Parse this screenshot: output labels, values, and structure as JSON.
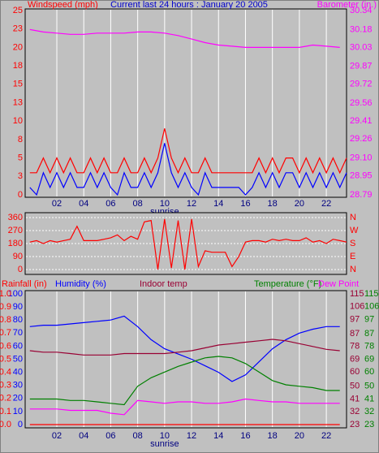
{
  "chart_data": [
    {
      "type": "line",
      "title": "Current last 24 hours : January 20 2005",
      "y_label": "Windspeed (mph)",
      "y2_label": "Barometer (in.)",
      "annotation": "sunrise",
      "grid": "x",
      "xlim": [
        -0.35,
        23.5
      ],
      "xticks": [
        {
          "value": 2,
          "label": "02"
        },
        {
          "value": 4,
          "label": "04"
        },
        {
          "value": 6,
          "label": "06"
        },
        {
          "value": 8,
          "label": "08"
        },
        10,
        12,
        14,
        16,
        18,
        20,
        22
      ],
      "ylim": [
        0,
        25
      ],
      "yticks": [
        0,
        {
          "value": 2.5,
          "label": "3"
        },
        5,
        {
          "value": 7.5,
          "label": "8"
        },
        10,
        {
          "value": 12.5,
          "label": "13"
        },
        15,
        {
          "value": 17.5,
          "label": "18"
        },
        20,
        {
          "value": 22.5,
          "label": "23"
        },
        25
      ],
      "y2lim": [
        28.79,
        30.34
      ],
      "y2ticks": [
        28.79,
        28.95,
        {
          "value": 29.1,
          "label": "29.10"
        },
        29.26,
        29.41,
        29.56,
        29.72,
        29.87,
        30.03,
        30.18,
        30.34
      ],
      "x": [
        0,
        0.5,
        1,
        1.5,
        2,
        2.5,
        3,
        3.5,
        4,
        4.5,
        5,
        5.5,
        6,
        6.5,
        7,
        7.5,
        8,
        8.5,
        9,
        9.5,
        10,
        10.5,
        11,
        11.5,
        12,
        12.5,
        13,
        13.5,
        14,
        14.5,
        15,
        15.5,
        16,
        16.5,
        17,
        17.5,
        18,
        18.5,
        19,
        19.5,
        20,
        20.5,
        21,
        21.5,
        22,
        22.5,
        23,
        23.5
      ],
      "series": [
        {
          "color": "#ff0000",
          "values": [
            3,
            3,
            5,
            3,
            5,
            3,
            5,
            3,
            3,
            5,
            3,
            5,
            3,
            3,
            5,
            3,
            3,
            5,
            3,
            5,
            9,
            5,
            3,
            5,
            3,
            3,
            5,
            3,
            3,
            3,
            3,
            3,
            3,
            3,
            5,
            3,
            5,
            3,
            5,
            5,
            3,
            5,
            3,
            5,
            3,
            5,
            3,
            5
          ]
        },
        {
          "color": "#0000ff",
          "values": [
            1,
            0,
            3,
            1,
            3,
            1,
            3,
            1,
            1,
            3,
            1,
            3,
            1,
            0,
            3,
            1,
            1,
            3,
            1,
            3,
            7,
            3,
            1,
            3,
            1,
            0,
            3,
            1,
            1,
            1,
            1,
            1,
            0,
            1,
            3,
            1,
            3,
            1,
            3,
            3,
            1,
            3,
            1,
            3,
            1,
            3,
            1,
            3
          ]
        },
        {
          "color": "#ff00ff",
          "axis": "y2",
          "x": [
            0,
            1,
            2,
            3,
            4,
            5,
            6,
            7,
            8,
            9,
            10,
            11,
            12,
            13,
            14,
            15,
            16,
            17,
            18,
            19,
            20,
            21,
            22,
            23
          ],
          "values": [
            30.18,
            30.16,
            30.15,
            30.14,
            30.14,
            30.15,
            30.15,
            30.15,
            30.16,
            30.16,
            30.15,
            30.13,
            30.1,
            30.07,
            30.05,
            30.04,
            30.03,
            30.03,
            30.03,
            30.03,
            30.03,
            30.05,
            30.04,
            30.03
          ]
        }
      ]
    },
    {
      "type": "line",
      "grid": "y",
      "xlim": [
        -0.35,
        23.5
      ],
      "ylim": [
        0,
        360
      ],
      "yticks": [
        0,
        90,
        180,
        270,
        360
      ],
      "y2lim": [
        0,
        360
      ],
      "y2ticks": [
        {
          "value": 0,
          "label": "N"
        },
        {
          "value": 90,
          "label": "E"
        },
        {
          "value": 180,
          "label": "S"
        },
        {
          "value": 270,
          "label": "W"
        },
        {
          "value": 360,
          "label": "N"
        }
      ],
      "x": [
        0,
        0.5,
        1,
        1.5,
        2,
        2.5,
        3,
        3.5,
        4,
        4.5,
        5,
        5.5,
        6,
        6.5,
        7,
        7.5,
        8,
        8.5,
        9,
        9.5,
        10,
        10.5,
        11,
        11.5,
        12,
        12.5,
        13,
        13.5,
        14,
        14.5,
        15,
        15.5,
        16,
        16.5,
        17,
        17.5,
        18,
        18.5,
        19,
        19.5,
        20,
        20.5,
        21,
        21.5,
        22,
        22.5,
        23,
        23.5
      ],
      "series": [
        {
          "color": "#ff0000",
          "values": [
            190,
            200,
            180,
            200,
            190,
            200,
            210,
            300,
            200,
            200,
            200,
            210,
            220,
            240,
            200,
            230,
            210,
            330,
            340,
            0,
            350,
            10,
            340,
            0,
            350,
            20,
            130,
            120,
            120,
            120,
            20,
            90,
            190,
            200,
            200,
            190,
            210,
            200,
            210,
            200,
            200,
            220,
            190,
            200,
            180,
            210,
            200,
            190
          ]
        }
      ]
    },
    {
      "type": "line",
      "annotation": "sunrise",
      "grid": "x",
      "xlim": [
        -0.35,
        23.5
      ],
      "xticks": [
        {
          "value": 2,
          "label": "02"
        },
        {
          "value": 4,
          "label": "04"
        },
        {
          "value": 6,
          "label": "06"
        },
        {
          "value": 8,
          "label": "08"
        },
        10,
        12,
        14,
        16,
        18,
        20,
        22
      ],
      "ylim": [
        0,
        100
      ],
      "yticks": [
        0,
        10,
        20,
        30,
        40,
        50,
        60,
        70,
        80,
        90,
        100
      ],
      "rainlim": [
        0,
        1
      ],
      "rainticks": [
        {
          "value": 0,
          "label": "0.0"
        },
        0.1,
        0.2,
        0.3,
        0.4,
        0.5,
        0.6,
        0.7,
        0.8,
        0.9,
        {
          "value": 1,
          "label": "1.0"
        }
      ],
      "y2lim": [
        23,
        115
      ],
      "y2ticks": [
        23,
        32,
        41,
        50,
        60,
        69,
        78,
        87,
        97,
        106,
        115
      ],
      "x": [
        0,
        1,
        2,
        3,
        4,
        5,
        6,
        7,
        8,
        9,
        10,
        11,
        12,
        13,
        14,
        15,
        16,
        17,
        18,
        19,
        20,
        21,
        22,
        23
      ],
      "series": [
        {
          "name": "Rainfall (in)",
          "color": "#ff0000",
          "axis": "rain",
          "values": [
            0,
            0,
            0,
            0,
            0,
            0,
            0,
            0,
            0,
            0,
            0,
            0,
            0,
            0,
            0,
            0,
            0,
            0,
            0,
            0,
            0,
            0,
            0,
            0
          ]
        },
        {
          "name": "Humidity (%)",
          "color": "#0000ff",
          "values": [
            75,
            76,
            76,
            77,
            78,
            79,
            80,
            83,
            75,
            65,
            58,
            54,
            50,
            45,
            40,
            33,
            38,
            48,
            58,
            65,
            70,
            73,
            75,
            75
          ]
        },
        {
          "name": "Indoor temp",
          "color": "#990033",
          "axis": "y2",
          "values": [
            75,
            74,
            74,
            73,
            72,
            72,
            72,
            73,
            73,
            73,
            73,
            74,
            75,
            77,
            79,
            80,
            81,
            82,
            83,
            82,
            80,
            78,
            76,
            75
          ]
        },
        {
          "name": "Temperature (°F)",
          "color": "#008000",
          "axis": "y2",
          "values": [
            41,
            41,
            41,
            40,
            40,
            39,
            38,
            37,
            50,
            56,
            60,
            64,
            67,
            70,
            71,
            70,
            66,
            60,
            54,
            51,
            50,
            49,
            47,
            47
          ]
        },
        {
          "name": "Dew Point",
          "color": "#ff00ff",
          "axis": "y2",
          "values": [
            34,
            34,
            34,
            33,
            33,
            33,
            31,
            30,
            40,
            39,
            38,
            39,
            39,
            38,
            38,
            39,
            41,
            40,
            39,
            39,
            38,
            38,
            38,
            38
          ]
        }
      ]
    }
  ]
}
